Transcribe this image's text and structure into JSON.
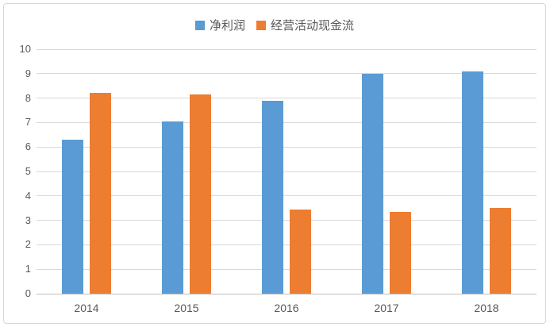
{
  "chart_data": {
    "type": "bar",
    "title": "",
    "categories": [
      "2014",
      "2015",
      "2016",
      "2017",
      "2018"
    ],
    "series": [
      {
        "name": "净利润",
        "color": "#5B9BD5",
        "values": [
          6.3,
          7.05,
          7.9,
          9.0,
          9.1
        ]
      },
      {
        "name": "经营活动现金流",
        "color": "#ED7D31",
        "values": [
          8.2,
          8.15,
          3.45,
          3.35,
          3.5
        ]
      }
    ],
    "xlabel": "",
    "ylabel": "",
    "ylim": [
      0,
      10
    ],
    "ytick_step": 1,
    "grid": "horizontal",
    "legend_position": "top-center",
    "colors": {
      "gridline": "#d9d9d9",
      "axis_line": "#bfbfbf",
      "tick_text": "#595959",
      "legend_text": "#595959",
      "frame_border": "#d7d7d7",
      "background": "#ffffff"
    }
  }
}
